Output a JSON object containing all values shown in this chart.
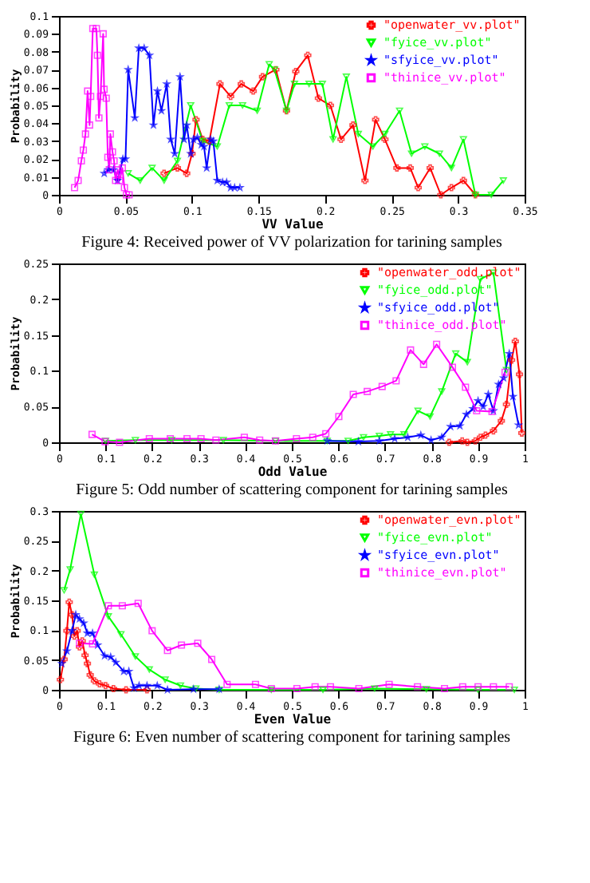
{
  "chart_data": [
    {
      "type": "line",
      "title": "Figure 4: Received power of VV polarization for tarining samples",
      "xlabel": "VV Value",
      "ylabel": "Probability",
      "xlim": [
        0,
        0.35
      ],
      "xticks": [
        0,
        0.05,
        0.1,
        0.15,
        0.2,
        0.25,
        0.3,
        0.35
      ],
      "ylim": [
        0,
        0.1
      ],
      "yticks": [
        0,
        0.01,
        0.02,
        0.03,
        0.04,
        0.05,
        0.06,
        0.07,
        0.08,
        0.09,
        0.1
      ],
      "legend": "top right",
      "series": [
        {
          "name": "\"openwater_vv.plot\"",
          "color": "#ff0000",
          "marker": "cross",
          "x": [
            0.079,
            0.089,
            0.096,
            0.1,
            0.103,
            0.108,
            0.113,
            0.121,
            0.129,
            0.137,
            0.146,
            0.153,
            0.163,
            0.171,
            0.178,
            0.187,
            0.195,
            0.204,
            0.212,
            0.221,
            0.23,
            0.238,
            0.245,
            0.254,
            0.264,
            0.27,
            0.279,
            0.287,
            0.295,
            0.304,
            0.313
          ],
          "values": [
            0.012,
            0.015,
            0.012,
            0.023,
            0.042,
            0.031,
            0.03,
            0.062,
            0.055,
            0.062,
            0.058,
            0.066,
            0.07,
            0.047,
            0.069,
            0.078,
            0.054,
            0.05,
            0.031,
            0.039,
            0.008,
            0.042,
            0.031,
            0.015,
            0.015,
            0.004,
            0.015,
            0,
            0.004,
            0.008,
            0
          ]
        },
        {
          "name": "\"fyice_vv.plot\"",
          "color": "#00ff00",
          "marker": "triangle",
          "x": [
            0.052,
            0.061,
            0.07,
            0.079,
            0.089,
            0.099,
            0.108,
            0.119,
            0.128,
            0.138,
            0.149,
            0.158,
            0.162,
            0.171,
            0.177,
            0.188,
            0.198,
            0.206,
            0.216,
            0.225,
            0.236,
            0.245,
            0.256,
            0.265,
            0.275,
            0.286,
            0.295,
            0.304,
            0.313,
            0.325,
            0.334
          ],
          "values": [
            0.012,
            0.008,
            0.015,
            0.008,
            0.019,
            0.05,
            0.03,
            0.027,
            0.05,
            0.05,
            0.047,
            0.073,
            0.07,
            0.047,
            0.062,
            0.062,
            0.062,
            0.031,
            0.066,
            0.034,
            0.027,
            0.034,
            0.047,
            0.023,
            0.027,
            0.023,
            0.015,
            0.031,
            0,
            0,
            0.008
          ]
        },
        {
          "name": "\"sfyice_vv.plot\"",
          "color": "#0000ff",
          "marker": "star",
          "x": [
            0.034,
            0.037,
            0.041,
            0.044,
            0.048,
            0.05,
            0.052,
            0.057,
            0.06,
            0.064,
            0.068,
            0.071,
            0.074,
            0.077,
            0.081,
            0.084,
            0.087,
            0.091,
            0.094,
            0.096,
            0.099,
            0.101,
            0.104,
            0.107,
            0.109,
            0.111,
            0.114,
            0.116,
            0.119,
            0.123,
            0.126,
            0.129,
            0.132,
            0.136
          ],
          "values": [
            0.012,
            0.014,
            0.014,
            0.008,
            0.02,
            0.02,
            0.07,
            0.043,
            0.082,
            0.082,
            0.078,
            0.039,
            0.058,
            0.047,
            0.062,
            0.031,
            0.023,
            0.066,
            0.031,
            0.039,
            0.023,
            0.031,
            0.032,
            0.028,
            0.027,
            0.015,
            0.031,
            0.03,
            0.008,
            0.007,
            0.007,
            0.004,
            0.004,
            0.004
          ]
        },
        {
          "name": "\"thinice_vv.plot\"",
          "color": "#ff00ff",
          "marker": "square",
          "x": [
            0.0117,
            0.0144,
            0.0168,
            0.0183,
            0.0199,
            0.0215,
            0.023,
            0.0238,
            0.0254,
            0.0281,
            0.0289,
            0.03,
            0.0312,
            0.0332,
            0.0339,
            0.0355,
            0.0367,
            0.0378,
            0.0386,
            0.0402,
            0.0414,
            0.0425,
            0.0441,
            0.0456,
            0.0476,
            0.0492,
            0.0507,
            0.0527
          ],
          "values": [
            0.004,
            0.008,
            0.019,
            0.025,
            0.034,
            0.058,
            0.039,
            0.055,
            0.093,
            0.093,
            0.078,
            0.043,
            0.055,
            0.09,
            0.059,
            0.054,
            0.021,
            0.014,
            0.034,
            0.024,
            0.019,
            0.008,
            0.014,
            0.008,
            0.015,
            0.004,
            0,
            0
          ]
        }
      ]
    },
    {
      "type": "line",
      "title": "Figure 5: Odd number of scattering component for tarining samples",
      "xlabel": "Odd Value",
      "ylabel": "Probability",
      "xlim": [
        0,
        1
      ],
      "xticks": [
        0,
        0.1,
        0.2,
        0.3,
        0.4,
        0.5,
        0.6,
        0.7,
        0.8,
        0.9,
        1
      ],
      "ylim": [
        0,
        0.25
      ],
      "yticks": [
        0,
        0.05,
        0.1,
        0.15,
        0.2,
        0.25
      ],
      "legend": "top right",
      "series": [
        {
          "name": "\"openwater_odd.plot\"",
          "color": "#ff0000",
          "marker": "cross",
          "x": [
            0.838,
            0.866,
            0.877,
            0.894,
            0.905,
            0.916,
            0.933,
            0.95,
            0.961,
            0.972,
            0.98,
            0.989,
            0.994
          ],
          "values": [
            0,
            0.002,
            0,
            0.002,
            0.007,
            0.01,
            0.016,
            0.03,
            0.053,
            0.115,
            0.141,
            0.095,
            0.013
          ]
        },
        {
          "name": "\"fyice_odd.plot\"",
          "color": "#00ff00",
          "marker": "triangle",
          "x": [
            0.1,
            0.164,
            0.242,
            0.353,
            0.465,
            0.576,
            0.621,
            0.654,
            0.688,
            0.712,
            0.741,
            0.771,
            0.797,
            0.822,
            0.852,
            0.877,
            0.905,
            0.933,
            0.961
          ],
          "values": [
            0.002,
            0.003,
            0.003,
            0.003,
            0.002,
            0.002,
            0.002,
            0.007,
            0.009,
            0.011,
            0.011,
            0.044,
            0.036,
            0.071,
            0.124,
            0.112,
            0.228,
            0.237,
            0.101
          ]
        },
        {
          "name": "\"sfyice_odd.plot\"",
          "color": "#0000ff",
          "marker": "star",
          "x": [
            0.576,
            0.643,
            0.688,
            0.721,
            0.749,
            0.777,
            0.799,
            0.822,
            0.841,
            0.861,
            0.875,
            0.889,
            0.9,
            0.911,
            0.922,
            0.933,
            0.944,
            0.955,
            0.967,
            0.975,
            0.987
          ],
          "values": [
            0.002,
            0.001,
            0.002,
            0.005,
            0.007,
            0.01,
            0.003,
            0.007,
            0.022,
            0.023,
            0.039,
            0.047,
            0.058,
            0.05,
            0.067,
            0.044,
            0.081,
            0.09,
            0.124,
            0.064,
            0.024
          ]
        },
        {
          "name": "\"thinice_odd.plot\"",
          "color": "#ff00ff",
          "marker": "square",
          "x": [
            0.071,
            0.099,
            0.13,
            0.194,
            0.239,
            0.275,
            0.305,
            0.337,
            0.398,
            0.431,
            0.465,
            0.51,
            0.545,
            0.573,
            0.601,
            0.632,
            0.662,
            0.694,
            0.724,
            0.755,
            0.783,
            0.811,
            0.845,
            0.873,
            0.897,
            0.93,
            0.958
          ],
          "values": [
            0.011,
            0.001,
            0,
            0.005,
            0.005,
            0.005,
            0.005,
            0.003,
            0.007,
            0.003,
            0.002,
            0.005,
            0.007,
            0.012,
            0.036,
            0.067,
            0.071,
            0.078,
            0.086,
            0.129,
            0.109,
            0.137,
            0.105,
            0.077,
            0.044,
            0.043,
            0.098
          ]
        }
      ]
    },
    {
      "type": "line",
      "title": "Figure 6: Even number of scattering component for tarining samples",
      "xlabel": "Even Value",
      "ylabel": "Probability",
      "xlim": [
        0,
        1
      ],
      "xticks": [
        0,
        0.1,
        0.2,
        0.3,
        0.4,
        0.5,
        0.6,
        0.7,
        0.8,
        0.9,
        1
      ],
      "ylim": [
        0,
        0.3
      ],
      "yticks": [
        0,
        0.05,
        0.1,
        0.15,
        0.2,
        0.25,
        0.3
      ],
      "legend": "top right",
      "series": [
        {
          "name": "\"openwater_evn.plot\"",
          "color": "#ff0000",
          "marker": "cross",
          "x": [
            0.003,
            0.011,
            0.017,
            0.022,
            0.028,
            0.033,
            0.039,
            0.044,
            0.05,
            0.056,
            0.061,
            0.067,
            0.076,
            0.087,
            0.1,
            0.117,
            0.144,
            0.189
          ],
          "values": [
            0.017,
            0.051,
            0.099,
            0.147,
            0.126,
            0.09,
            0.099,
            0.072,
            0.082,
            0.058,
            0.044,
            0.025,
            0.015,
            0.01,
            0.007,
            0.002,
            0,
            0
          ]
        },
        {
          "name": "\"fyice_evn.plot\"",
          "color": "#00ff00",
          "marker": "triangle",
          "x": [
            0.011,
            0.024,
            0.047,
            0.076,
            0.106,
            0.133,
            0.164,
            0.194,
            0.228,
            0.261,
            0.294,
            0.344,
            0.456,
            0.567,
            0.678,
            0.789,
            0.9,
            0.978
          ],
          "values": [
            0.167,
            0.202,
            0.295,
            0.193,
            0.123,
            0.093,
            0.056,
            0.034,
            0.017,
            0.007,
            0.002,
            0,
            0,
            0,
            0.002,
            0.001,
            0,
            0
          ]
        },
        {
          "name": "\"sfyice_evn.plot\"",
          "color": "#0000ff",
          "marker": "star",
          "x": [
            0.006,
            0.017,
            0.028,
            0.036,
            0.044,
            0.053,
            0.061,
            0.072,
            0.083,
            0.098,
            0.111,
            0.122,
            0.139,
            0.15,
            0.161,
            0.172,
            0.189,
            0.211,
            0.233,
            0.289,
            0.344
          ],
          "values": [
            0.044,
            0.065,
            0.099,
            0.126,
            0.119,
            0.112,
            0.095,
            0.095,
            0.075,
            0.057,
            0.055,
            0.046,
            0.031,
            0.031,
            0.003,
            0.007,
            0.007,
            0.007,
            0,
            0.001,
            0.001
          ]
        },
        {
          "name": "\"thinice_evn.plot\"",
          "color": "#ff00ff",
          "marker": "square",
          "x": [
            0.044,
            0.072,
            0.106,
            0.136,
            0.17,
            0.2,
            0.233,
            0.263,
            0.298,
            0.328,
            0.361,
            0.422,
            0.456,
            0.511,
            0.55,
            0.583,
            0.644,
            0.709,
            0.77,
            0.828,
            0.867,
            0.9,
            0.933,
            0.967
          ],
          "values": [
            0.078,
            0.077,
            0.141,
            0.141,
            0.145,
            0.099,
            0.066,
            0.075,
            0.078,
            0.051,
            0.009,
            0.009,
            0.002,
            0.002,
            0.005,
            0.005,
            0.002,
            0.009,
            0.005,
            0.002,
            0.005,
            0.005,
            0.005,
            0.005
          ]
        }
      ]
    }
  ]
}
